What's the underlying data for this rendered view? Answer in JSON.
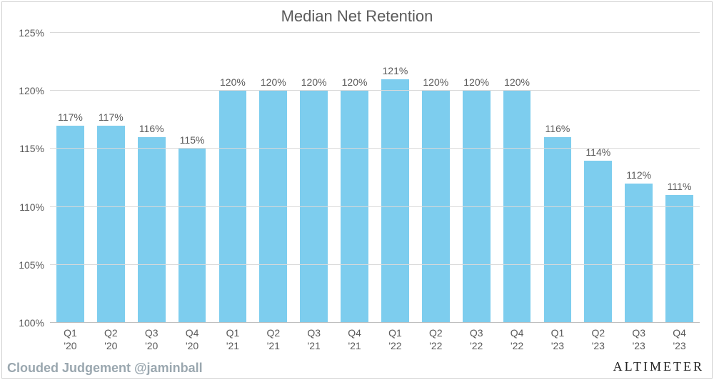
{
  "chart": {
    "type": "bar",
    "title": "Median Net Retention",
    "title_fontsize": 22,
    "title_color": "#5a5a5a",
    "background_color": "#ffffff",
    "frame_border_color": "#d0d0d0",
    "grid_color": "#d9d9d9",
    "axis_color": "#bfbfbf",
    "text_color": "#5a5a5a",
    "bar_color": "#7dcdee",
    "label_fontsize": 14,
    "value_suffix": "%",
    "ylim": [
      100,
      125
    ],
    "ytick_step": 5,
    "yticks": [
      100,
      105,
      110,
      115,
      120,
      125
    ],
    "bar_width_ratio": 0.68,
    "categories": [
      {
        "l1": "Q1",
        "l2": "'20"
      },
      {
        "l1": "Q2",
        "l2": "'20"
      },
      {
        "l1": "Q3",
        "l2": "'20"
      },
      {
        "l1": "Q4",
        "l2": "'20"
      },
      {
        "l1": "Q1",
        "l2": "'21"
      },
      {
        "l1": "Q2",
        "l2": "'21"
      },
      {
        "l1": "Q3",
        "l2": "'21"
      },
      {
        "l1": "Q4",
        "l2": "'21"
      },
      {
        "l1": "Q1",
        "l2": "'22"
      },
      {
        "l1": "Q2",
        "l2": "'22"
      },
      {
        "l1": "Q3",
        "l2": "'22"
      },
      {
        "l1": "Q4",
        "l2": "'22"
      },
      {
        "l1": "Q1",
        "l2": "'23"
      },
      {
        "l1": "Q2",
        "l2": "'23"
      },
      {
        "l1": "Q3",
        "l2": "'23"
      },
      {
        "l1": "Q4",
        "l2": "'23"
      }
    ],
    "values": [
      117,
      117,
      116,
      115,
      120,
      120,
      120,
      120,
      121,
      120,
      120,
      120,
      116,
      114,
      112,
      111
    ]
  },
  "footer": {
    "left": "Clouded Judgement @jaminball",
    "right": "ALTIMETER",
    "left_color": "#9aa7af",
    "right_color": "#222222"
  }
}
